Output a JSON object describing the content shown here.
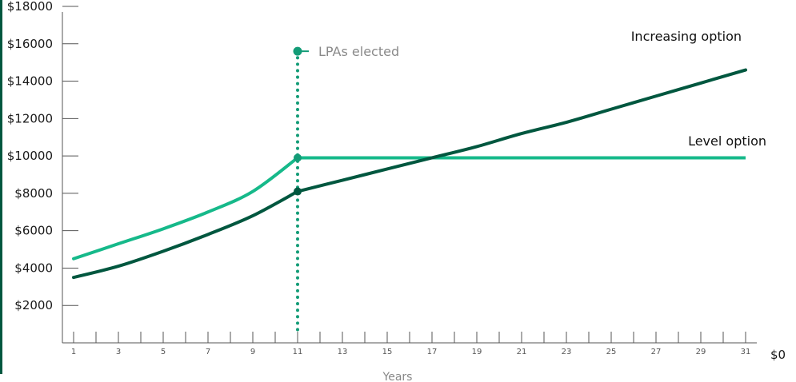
{
  "colors": {
    "increasing": "#00573f",
    "level": "#16b98a",
    "marker_line": "#139c77",
    "axis": "#555555",
    "left_bar": "#00573f"
  },
  "chart_data": {
    "type": "line",
    "xlabel": "Years",
    "ylabel": "",
    "x_ticks": [
      1,
      3,
      5,
      7,
      9,
      11,
      13,
      15,
      17,
      19,
      21,
      23,
      25,
      27,
      29,
      31
    ],
    "x_tick_labels": [
      "1",
      "3",
      "5",
      "7",
      "9",
      "11",
      "13",
      "15",
      "17",
      "19",
      "21",
      "23",
      "25",
      "27",
      "29",
      "31"
    ],
    "xlim": [
      1,
      31
    ],
    "y_ticks": [
      2000,
      4000,
      6000,
      8000,
      10000,
      12000,
      14000,
      16000,
      18000
    ],
    "y_tick_labels": [
      "$2000",
      "$4000",
      "$6000",
      "$8000",
      "$10000",
      "$12000",
      "$14000",
      "$16000",
      "$18000"
    ],
    "ylim": [
      0,
      18000
    ],
    "zero_label": "$0",
    "series": [
      {
        "name": "Increasing option",
        "x": [
          1,
          3,
          5,
          7,
          9,
          11,
          13,
          15,
          17,
          19,
          21,
          23,
          25,
          27,
          29,
          31
        ],
        "y": [
          3500,
          4100,
          4900,
          5800,
          6800,
          8100,
          8700,
          9300,
          9900,
          10500,
          11200,
          11800,
          12500,
          13200,
          13900,
          14600
        ]
      },
      {
        "name": "Level option",
        "x": [
          1,
          3,
          5,
          7,
          9,
          11,
          13,
          15,
          17,
          19,
          21,
          23,
          25,
          27,
          29,
          31
        ],
        "y": [
          4500,
          5300,
          6100,
          7000,
          8100,
          9900,
          9900,
          9900,
          9900,
          9900,
          9900,
          9900,
          9900,
          9900,
          9900,
          9900
        ]
      }
    ],
    "annotations": [
      {
        "text": "LPAs elected",
        "x": 11,
        "y": 15600
      }
    ],
    "markers": [
      {
        "x": 11,
        "y": 9900
      },
      {
        "x": 11,
        "y": 8100
      }
    ],
    "grid": false,
    "legend": "none"
  }
}
